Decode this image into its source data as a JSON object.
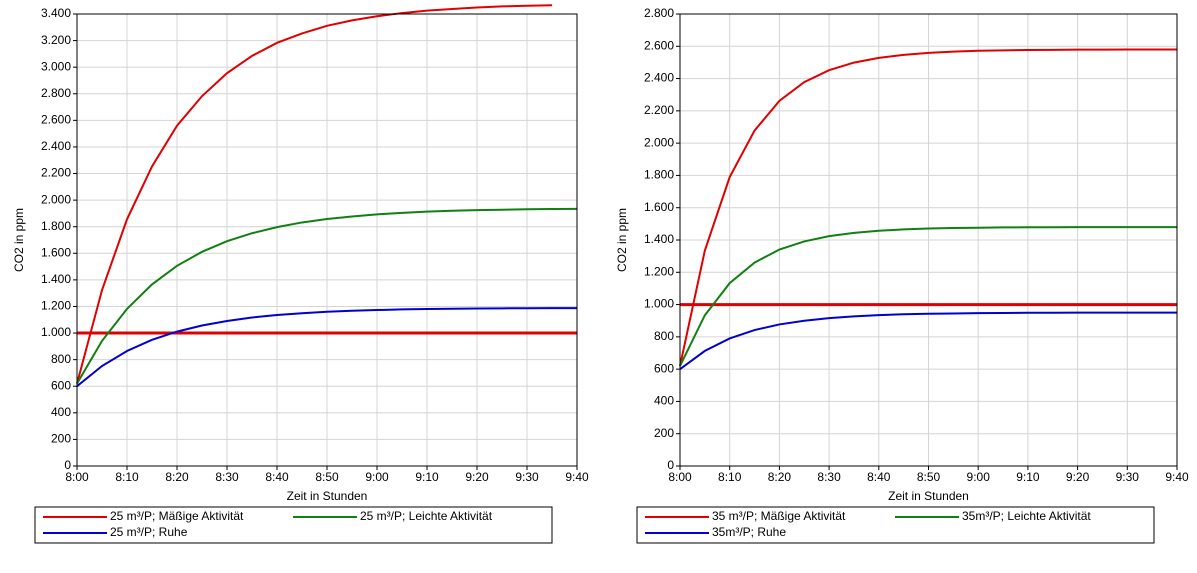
{
  "chart_data": [
    {
      "type": "line",
      "x": [
        480,
        485,
        490,
        495,
        500,
        505,
        510,
        515,
        520,
        525,
        530,
        535,
        540,
        545,
        550,
        555,
        560,
        565,
        570,
        575,
        580
      ],
      "xlim": [
        480,
        580
      ],
      "xticks": [
        {
          "value": 480,
          "label": "8:00"
        },
        {
          "value": 490,
          "label": "8:10"
        },
        {
          "value": 500,
          "label": "8:20"
        },
        {
          "value": 510,
          "label": "8:30"
        },
        {
          "value": 520,
          "label": "8:40"
        },
        {
          "value": 530,
          "label": "8:50"
        },
        {
          "value": 540,
          "label": "9:00"
        },
        {
          "value": 550,
          "label": "9:10"
        },
        {
          "value": 560,
          "label": "9:20"
        },
        {
          "value": 570,
          "label": "9:30"
        },
        {
          "value": 580,
          "label": "9:40"
        }
      ],
      "ylim": [
        0,
        3400
      ],
      "yticks": [
        0,
        200,
        400,
        600,
        800,
        {
          "value": 1000,
          "label": "1.000"
        },
        {
          "value": 1200,
          "label": "1.200"
        },
        {
          "value": 1400,
          "label": "1.400"
        },
        {
          "value": 1600,
          "label": "1.600"
        },
        {
          "value": 1800,
          "label": "1.800"
        },
        {
          "value": 2000,
          "label": "2.000"
        },
        {
          "value": 2200,
          "label": "2.200"
        },
        {
          "value": 2400,
          "label": "2.400"
        },
        {
          "value": 2600,
          "label": "2.600"
        },
        {
          "value": 2800,
          "label": "2.800"
        },
        {
          "value": 3000,
          "label": "3.000"
        },
        {
          "value": 3200,
          "label": "3.200"
        },
        {
          "value": 3400,
          "label": "3.400"
        }
      ],
      "xlabel": "Zeit in Stunden",
      "ylabel": "CO2 in ppm",
      "grid": true,
      "reference_line": {
        "value": 1000,
        "color": "#e00000"
      },
      "series": [
        {
          "name": "25 m³/P; Mäßige Aktivität",
          "color": "#e00000",
          "values": [
            620,
            1323,
            1856,
            2253,
            2560,
            2782,
            2955,
            3085,
            3183,
            3254,
            3311,
            3352,
            3383,
            3407,
            3425,
            3438,
            3449,
            3457,
            3462,
            3466,
            null
          ]
        },
        {
          "name": "25 m³/P; Leichte Aktivität",
          "color": "#108010",
          "values": [
            620,
            941,
            1182,
            1366,
            1506,
            1611,
            1691,
            1751,
            1797,
            1832,
            1858,
            1877,
            1893,
            1904,
            1913,
            1920,
            1925,
            1928,
            1931,
            1933,
            1934
          ]
        },
        {
          "name": "25 m³/P; Ruhe",
          "color": "#0000d0",
          "values": [
            600,
            752,
            865,
            949,
            1011,
            1057,
            1091,
            1117,
            1136,
            1149,
            1160,
            1168,
            1173,
            1178,
            1181,
            1183,
            1185,
            1186,
            1187,
            1188,
            1188
          ]
        }
      ]
    },
    {
      "type": "line",
      "x": [
        480,
        485,
        490,
        495,
        500,
        505,
        510,
        515,
        520,
        525,
        530,
        535,
        540,
        545,
        550,
        555,
        560,
        565,
        570,
        575,
        580
      ],
      "xlim": [
        480,
        580
      ],
      "xticks": [
        {
          "value": 480,
          "label": "8:00"
        },
        {
          "value": 490,
          "label": "8:10"
        },
        {
          "value": 500,
          "label": "8:20"
        },
        {
          "value": 510,
          "label": "8:30"
        },
        {
          "value": 520,
          "label": "8:40"
        },
        {
          "value": 530,
          "label": "8:50"
        },
        {
          "value": 540,
          "label": "9:00"
        },
        {
          "value": 550,
          "label": "9:10"
        },
        {
          "value": 560,
          "label": "9:20"
        },
        {
          "value": 570,
          "label": "9:30"
        },
        {
          "value": 580,
          "label": "9:40"
        }
      ],
      "ylim": [
        0,
        2800
      ],
      "yticks": [
        0,
        200,
        400,
        600,
        800,
        {
          "value": 1000,
          "label": "1.000"
        },
        {
          "value": 1200,
          "label": "1.200"
        },
        {
          "value": 1400,
          "label": "1.400"
        },
        {
          "value": 1600,
          "label": "1.600"
        },
        {
          "value": 1800,
          "label": "1.800"
        },
        {
          "value": 2000,
          "label": "2.000"
        },
        {
          "value": 2200,
          "label": "2.200"
        },
        {
          "value": 2400,
          "label": "2.400"
        },
        {
          "value": 2600,
          "label": "2.600"
        },
        {
          "value": 2800,
          "label": "2.800"
        }
      ],
      "xlabel": "Zeit in Stunden",
      "ylabel": "CO2 in ppm",
      "grid": true,
      "reference_line": {
        "value": 1000,
        "color": "#e00000"
      },
      "series": [
        {
          "name": "35 m³/P; Mäßige Aktivität",
          "color": "#e00000",
          "values": [
            620,
            1335,
            1790,
            2078,
            2262,
            2378,
            2452,
            2499,
            2528,
            2547,
            2559,
            2567,
            2572,
            2575,
            2577,
            2578,
            2579,
            2579,
            2580,
            2580,
            2580
          ]
        },
        {
          "name": "35m³/P; Leichte Aktivität",
          "color": "#108010",
          "values": [
            620,
            934,
            1133,
            1260,
            1341,
            1391,
            1424,
            1444,
            1457,
            1466,
            1471,
            1474,
            1476,
            1478,
            1479,
            1479,
            1480,
            1480,
            1480,
            1480,
            1480
          ]
        },
        {
          "name": "35m³/P; Ruhe",
          "color": "#0000d0",
          "values": [
            600,
            713,
            790,
            842,
            877,
            900,
            916,
            927,
            935,
            940,
            943,
            945,
            947,
            948,
            949,
            949,
            950,
            950,
            950,
            950,
            950
          ]
        }
      ]
    }
  ]
}
